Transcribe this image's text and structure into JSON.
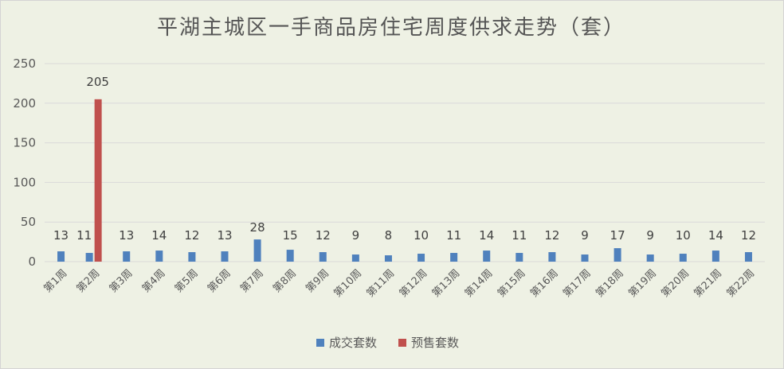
{
  "chart_data": {
    "type": "bar",
    "title": "平湖主城区一手商品房住宅周度供求走势（套）",
    "categories": [
      "第1周",
      "第2周",
      "第3周",
      "第4周",
      "第5周",
      "第6周",
      "第7周",
      "第8周",
      "第9周",
      "第10周",
      "第11周",
      "第12周",
      "第13周",
      "第14周",
      "第15周",
      "第16周",
      "第17周",
      "第18周",
      "第19周",
      "第20周",
      "第21周",
      "第22周"
    ],
    "series": [
      {
        "name": "成交套数",
        "color": "#4f81bd",
        "values": [
          13,
          11,
          13,
          14,
          12,
          13,
          28,
          15,
          12,
          9,
          8,
          10,
          11,
          14,
          11,
          12,
          9,
          17,
          9,
          10,
          14,
          12
        ]
      },
      {
        "name": "预售套数",
        "color": "#c0504d",
        "values": [
          0,
          205,
          0,
          0,
          0,
          0,
          0,
          0,
          0,
          0,
          0,
          0,
          0,
          0,
          0,
          0,
          0,
          0,
          0,
          0,
          0,
          0
        ]
      }
    ],
    "data_labels": [
      "13",
      "205",
      "13",
      "14",
      "12",
      "13",
      "28",
      "15",
      "12",
      "9",
      "8",
      "10",
      "11",
      "14",
      "11",
      "12",
      "9",
      "17",
      "9",
      "10",
      "14",
      "12"
    ],
    "data_labels_note_index_1_left": "11",
    "yticks": [
      0,
      50,
      100,
      150,
      200,
      250
    ],
    "ylim": [
      0,
      250
    ],
    "grid": true,
    "legend_position": "bottom"
  }
}
